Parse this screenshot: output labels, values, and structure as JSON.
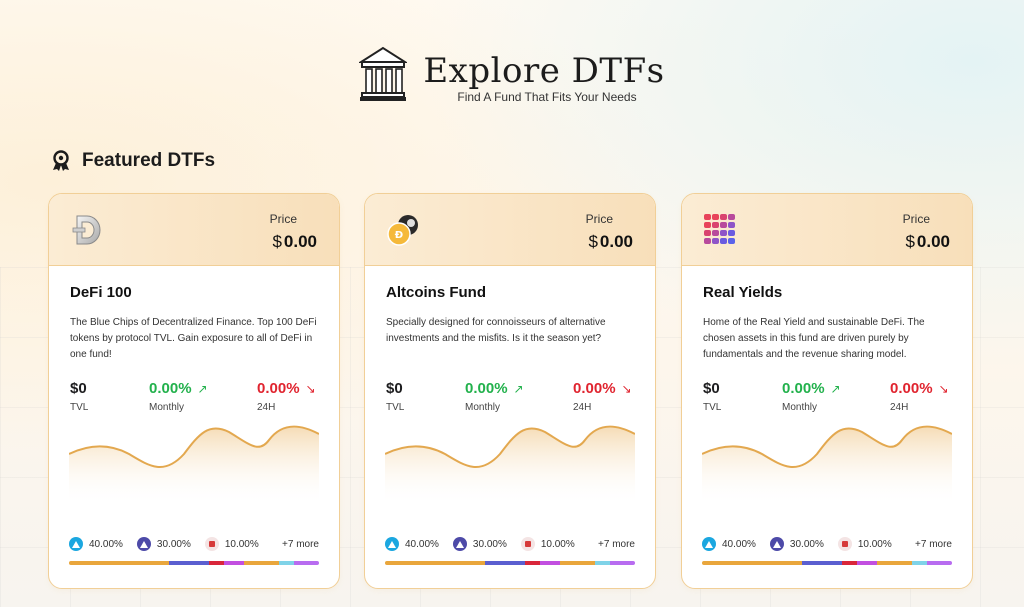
{
  "header": {
    "title": "Explore DTFs",
    "subtitle": "Find A Fund That Fits Your Needs",
    "logo_icon": "bank-building-icon"
  },
  "featured": {
    "title": "Featured DTFs",
    "icon": "award-ribbon-icon"
  },
  "cards": [
    {
      "name": "DeFi 100",
      "icon": "defi-d-coin-icon",
      "price_label": "Price",
      "price_currency": "$",
      "price_value": "0.00",
      "description": "The Blue Chips of Decentralized Finance. Top 100 DeFi tokens by protocol TVL. Gain exposure to all of DeFi in one fund!",
      "tvl_value": "$0",
      "tvl_label": "TVL",
      "monthly_value": "0.00%",
      "monthly_label": "Monthly",
      "day_value": "0.00%",
      "day_label": "24H",
      "allocations": [
        {
          "value": "40.00%",
          "icon": "token-blue-icon",
          "color": "#1ba7e0"
        },
        {
          "value": "30.00%",
          "icon": "token-indigo-icon",
          "color": "#4d4aa8"
        },
        {
          "value": "10.00%",
          "icon": "token-red-icon",
          "color": "#d63a3a"
        }
      ],
      "more": "+7 more"
    },
    {
      "name": "Altcoins Fund",
      "icon": "altcoin-pair-icon",
      "price_label": "Price",
      "price_currency": "$",
      "price_value": "0.00",
      "description": "Specially designed for connoisseurs of alternative investments and the misfits. Is it the season yet?",
      "tvl_value": "$0",
      "tvl_label": "TVL",
      "monthly_value": "0.00%",
      "monthly_label": "Monthly",
      "day_value": "0.00%",
      "day_label": "24H",
      "allocations": [
        {
          "value": "40.00%",
          "icon": "token-blue-icon",
          "color": "#1ba7e0"
        },
        {
          "value": "30.00%",
          "icon": "token-indigo-icon",
          "color": "#4d4aa8"
        },
        {
          "value": "10.00%",
          "icon": "token-red-icon",
          "color": "#d63a3a"
        }
      ],
      "more": "+7 more"
    },
    {
      "name": "Real Yields",
      "icon": "real-yield-grid-icon",
      "price_label": "Price",
      "price_currency": "$",
      "price_value": "0.00",
      "description": "Home of the Real Yield and sustainable DeFi. The chosen assets in this fund are driven purely by fundamentals and the revenue sharing model.",
      "tvl_value": "$0",
      "tvl_label": "TVL",
      "monthly_value": "0.00%",
      "monthly_label": "Monthly",
      "day_value": "0.00%",
      "day_label": "24H",
      "allocations": [
        {
          "value": "40.00%",
          "icon": "token-blue-icon",
          "color": "#1ba7e0"
        },
        {
          "value": "30.00%",
          "icon": "token-indigo-icon",
          "color": "#4d4aa8"
        },
        {
          "value": "10.00%",
          "icon": "token-red-icon",
          "color": "#d63a3a"
        }
      ],
      "more": "+7 more"
    }
  ],
  "colors": {
    "positive": "#22b14c",
    "negative": "#e0242f",
    "card_border": "#f1cf97",
    "sparkline": "#e3a84f",
    "allocation_bar": [
      "#e9a63c",
      "#5b5fd0",
      "#d9263a",
      "#c24fe0",
      "#e9a63c",
      "#7fd3e8",
      "#b86cf0"
    ]
  }
}
